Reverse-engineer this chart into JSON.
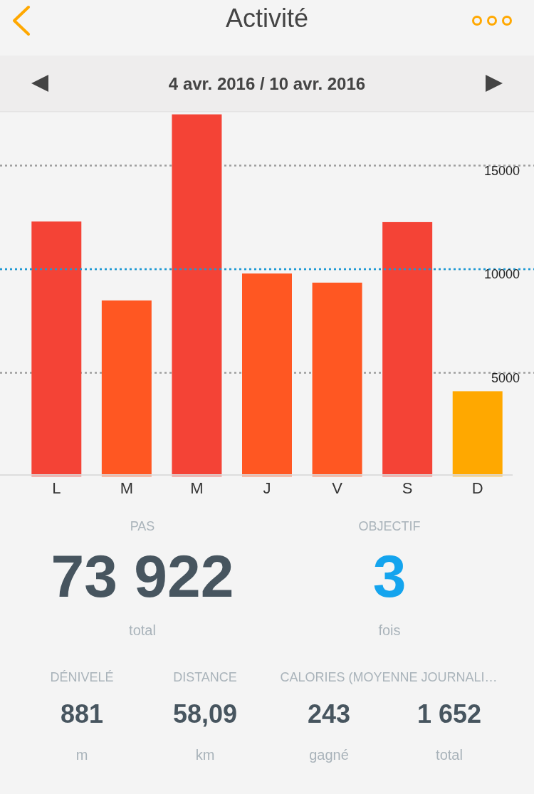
{
  "chart_data": {
    "type": "bar",
    "title": "Activité",
    "subtitle": "4 avr. 2016 / 10 avr. 2016",
    "categories": [
      "L",
      "M",
      "M",
      "J",
      "V",
      "S",
      "D"
    ],
    "values": [
      12300,
      8490,
      17470,
      9790,
      9350,
      12270,
      4110
    ],
    "colors": [
      "#f44336",
      "#ff5722",
      "#f44336",
      "#ff5722",
      "#ff5722",
      "#f44336",
      "#ffa800"
    ],
    "ylim": [
      0,
      17600
    ],
    "yticks": [
      5000,
      10000,
      15000
    ],
    "grid": "y",
    "ref_lines": [
      {
        "axis": "y",
        "value": 10000,
        "color": "#1a9bd7",
        "line_style": "dotted"
      }
    ],
    "annotations": [
      "PAS",
      "73 922",
      "total",
      "OBJECTIF",
      "3",
      "fois",
      "DÉNIVELÉ",
      "881",
      "m",
      "DISTANCE",
      "58,09",
      "km",
      "CALORIES (MOYENNE JOURNALI…",
      "243",
      "gagné",
      "1 652",
      "total"
    ]
  }
}
